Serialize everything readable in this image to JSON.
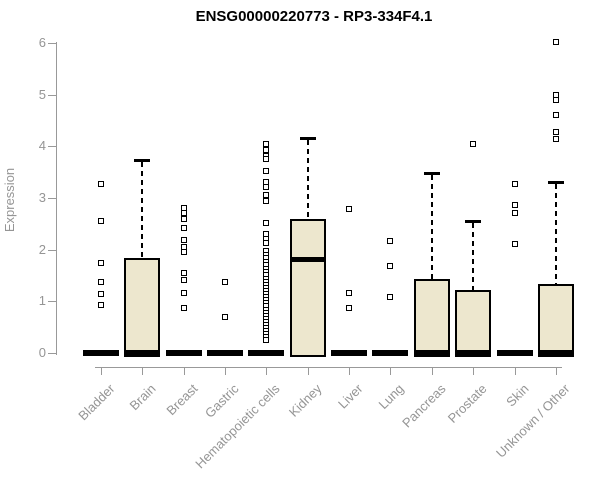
{
  "chart_data": {
    "type": "boxplot",
    "title": "ENSG00000220773 - RP3-334F4.1",
    "ylabel": "Expression",
    "xlabel": "",
    "ylim": [
      0,
      6
    ],
    "yticks": [
      "0",
      "1",
      "2",
      "3",
      "4",
      "5",
      "6"
    ],
    "grid": false,
    "legend": "none",
    "categories": [
      "Bladder",
      "Brain",
      "Breast",
      "Gastric",
      "Hematopoietic cells",
      "Kidney",
      "Liver",
      "Lung",
      "Pancreas",
      "Prostate",
      "Skin",
      "Unknown / Other"
    ],
    "boxes": [
      {
        "category": "Bladder",
        "q1": 0,
        "median": 0,
        "q3": 0,
        "whisker_low": 0,
        "whisker_high": 0,
        "outliers": [
          3.28,
          2.56,
          1.75,
          1.38,
          1.15,
          0.93
        ]
      },
      {
        "category": "Brain",
        "q1": 0,
        "median": 0,
        "q3": 1.83,
        "whisker_low": 0,
        "whisker_high": 3.75,
        "outliers": []
      },
      {
        "category": "Breast",
        "q1": 0,
        "median": 0,
        "q3": 0,
        "whisker_low": 0,
        "whisker_high": 0,
        "outliers": [
          2.81,
          2.7,
          2.6,
          2.42,
          2.18,
          2.05,
          1.95,
          1.55,
          1.42,
          1.16,
          0.87
        ]
      },
      {
        "category": "Gastric",
        "q1": 0,
        "median": 0,
        "q3": 0,
        "whisker_low": 0,
        "whisker_high": 0,
        "outliers": [
          1.38,
          0.7
        ]
      },
      {
        "category": "Hematopoietic cells",
        "q1": 0,
        "median": 0,
        "q3": 0,
        "whisker_low": 0,
        "whisker_high": 0,
        "outliers": [
          4.05,
          3.92,
          3.82,
          3.75,
          3.52,
          3.3,
          3.22,
          3.05,
          2.95,
          2.52,
          2.3,
          2.2,
          2.12,
          1.97,
          1.9,
          1.83,
          1.76,
          1.7,
          1.63,
          1.57,
          1.5,
          1.44,
          1.38,
          1.32,
          1.26,
          1.2,
          1.14,
          1.08,
          1.02,
          0.96,
          0.9,
          0.84,
          0.78,
          0.72,
          0.66,
          0.6,
          0.54,
          0.48,
          0.42,
          0.36,
          0.3,
          0.25
        ]
      },
      {
        "category": "Kidney",
        "q1": 0,
        "median": 1.81,
        "q3": 2.6,
        "whisker_low": 0,
        "whisker_high": 4.19,
        "outliers": []
      },
      {
        "category": "Liver",
        "q1": 0,
        "median": 0,
        "q3": 0,
        "whisker_low": 0,
        "whisker_high": 0,
        "outliers": [
          2.79,
          1.17,
          0.88
        ]
      },
      {
        "category": "Lung",
        "q1": 0,
        "median": 0,
        "q3": 0,
        "whisker_low": 0,
        "whisker_high": 0,
        "outliers": [
          2.16,
          1.68,
          1.09
        ]
      },
      {
        "category": "Pancreas",
        "q1": 0,
        "median": 0,
        "q3": 1.44,
        "whisker_low": 0,
        "whisker_high": 3.5,
        "outliers": []
      },
      {
        "category": "Prostate",
        "q1": 0,
        "median": 0,
        "q3": 1.21,
        "whisker_low": 0,
        "whisker_high": 2.58,
        "outliers": [
          4.04
        ]
      },
      {
        "category": "Skin",
        "q1": 0,
        "median": 0,
        "q3": 0,
        "whisker_low": 0,
        "whisker_high": 0,
        "outliers": [
          3.28,
          2.87,
          2.71,
          2.1
        ]
      },
      {
        "category": "Unknown / Other",
        "q1": 0,
        "median": 0,
        "q3": 1.33,
        "whisker_low": 0,
        "whisker_high": 3.33,
        "outliers": [
          6.02,
          5.0,
          4.9,
          4.6,
          4.27,
          4.15
        ]
      }
    ],
    "colors": {
      "box_fill": "#ede7ce",
      "box_border": "#000000",
      "median": "#000000",
      "whisker": "#000000",
      "outlier": "#000000",
      "axis": "#999999",
      "tick_text": "#959595",
      "title_text": "#000000"
    }
  }
}
